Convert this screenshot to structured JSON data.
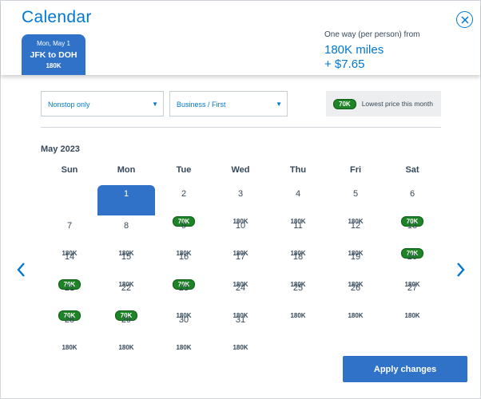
{
  "header": {
    "title": "Calendar",
    "close_icon": "close-icon",
    "selected_tab": {
      "date": "Mon, May 1",
      "route": "JFK to DOH",
      "price": "180K"
    },
    "fare": {
      "label": "One way (per person) from",
      "miles": "180K miles",
      "tax": "+ $7.65"
    }
  },
  "filters": {
    "stops": {
      "value": "Nonstop only"
    },
    "cabin": {
      "value": "Business / First"
    },
    "legend": {
      "badge": "70K",
      "label": "Lowest price this month"
    }
  },
  "calendar": {
    "month": "May 2023",
    "weekdays": [
      "Sun",
      "Mon",
      "Tue",
      "Wed",
      "Thu",
      "Fri",
      "Sat"
    ],
    "first_weekday_index": 1,
    "selected_day": 1,
    "days": [
      {
        "day": "1",
        "price": "180K",
        "lowest": false
      },
      {
        "day": "2",
        "price": "70K",
        "lowest": true
      },
      {
        "day": "3",
        "price": "180K",
        "lowest": false
      },
      {
        "day": "4",
        "price": "180K",
        "lowest": false
      },
      {
        "day": "5",
        "price": "180K",
        "lowest": false
      },
      {
        "day": "6",
        "price": "70K",
        "lowest": true
      },
      {
        "day": "7",
        "price": "180K",
        "lowest": false
      },
      {
        "day": "8",
        "price": "180K",
        "lowest": false
      },
      {
        "day": "9",
        "price": "180K",
        "lowest": false
      },
      {
        "day": "10",
        "price": "180K",
        "lowest": false
      },
      {
        "day": "11",
        "price": "180K",
        "lowest": false
      },
      {
        "day": "12",
        "price": "180K",
        "lowest": false
      },
      {
        "day": "13",
        "price": "70K",
        "lowest": true
      },
      {
        "day": "14",
        "price": "70K",
        "lowest": true
      },
      {
        "day": "15",
        "price": "180K",
        "lowest": false
      },
      {
        "day": "16",
        "price": "70K",
        "lowest": true
      },
      {
        "day": "17",
        "price": "180K",
        "lowest": false
      },
      {
        "day": "18",
        "price": "180K",
        "lowest": false
      },
      {
        "day": "19",
        "price": "180K",
        "lowest": false
      },
      {
        "day": "20",
        "price": "180K",
        "lowest": false
      },
      {
        "day": "21",
        "price": "70K",
        "lowest": true
      },
      {
        "day": "22",
        "price": "70K",
        "lowest": true
      },
      {
        "day": "23",
        "price": "180K",
        "lowest": false
      },
      {
        "day": "24",
        "price": "180K",
        "lowest": false
      },
      {
        "day": "25",
        "price": "180K",
        "lowest": false
      },
      {
        "day": "26",
        "price": "180K",
        "lowest": false
      },
      {
        "day": "27",
        "price": "180K",
        "lowest": false
      },
      {
        "day": "28",
        "price": "180K",
        "lowest": false
      },
      {
        "day": "29",
        "price": "180K",
        "lowest": false
      },
      {
        "day": "30",
        "price": "180K",
        "lowest": false
      },
      {
        "day": "31",
        "price": "180K",
        "lowest": false
      }
    ]
  },
  "nav": {
    "prev_icon": "chevron-left-icon",
    "next_icon": "chevron-right-icon"
  },
  "footer": {
    "apply_label": "Apply changes"
  },
  "colors": {
    "accent": "#0078d2",
    "selected": "#2f72c8",
    "lowest_badge": "#1e8526",
    "text": "#36495a"
  }
}
